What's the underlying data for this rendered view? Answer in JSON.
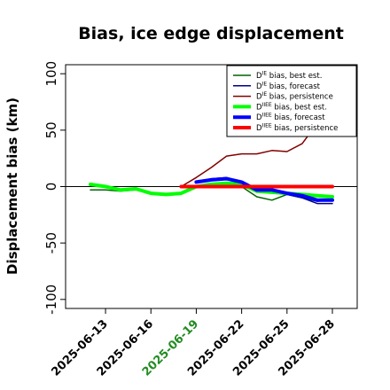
{
  "chart_data": {
    "type": "line",
    "title": "Bias, ice edge displacement",
    "ylabel": "Displacement bias (km)",
    "xlabel": "",
    "ylim": [
      -108,
      108
    ],
    "yticks": [
      -100,
      -50,
      0,
      50,
      100
    ],
    "xticks": [
      "2025-06-13",
      "2025-06-16",
      "2025-06-19",
      "2025-06-22",
      "2025-06-25",
      "2025-06-28"
    ],
    "highlight_tick": "2025-06-19",
    "highlight_color": "#228b22",
    "x": [
      "2025-06-12",
      "2025-06-13",
      "2025-06-14",
      "2025-06-15",
      "2025-06-16",
      "2025-06-17",
      "2025-06-18",
      "2025-06-19",
      "2025-06-20",
      "2025-06-21",
      "2025-06-22",
      "2025-06-23",
      "2025-06-24",
      "2025-06-25",
      "2025-06-26",
      "2025-06-27",
      "2025-06-28"
    ],
    "grid": false,
    "legend_position": "top-right",
    "series": [
      {
        "name": "D^IE bias, best est.",
        "color": "#006400",
        "width": 1.5,
        "values": [
          -3,
          -3,
          -4,
          -3,
          -6,
          -7,
          -6,
          1,
          -1,
          2,
          0,
          -9,
          -12,
          -7,
          -10,
          -13,
          -12
        ]
      },
      {
        "name": "D^IE bias, forecast",
        "color": "#00008b",
        "width": 1.5,
        "values": [
          null,
          null,
          null,
          null,
          null,
          null,
          null,
          4,
          7,
          8,
          4,
          -5,
          -4,
          -7,
          -10,
          -15,
          -15
        ]
      },
      {
        "name": "D^IE bias, persistence",
        "color": "#800000",
        "width": 1.5,
        "values": [
          null,
          null,
          null,
          null,
          null,
          null,
          0,
          8,
          17,
          27,
          29,
          29,
          32,
          31,
          38,
          56,
          60
        ]
      },
      {
        "name": "D^IIEE bias, best est.",
        "color": "#00ff00",
        "width": 4,
        "values": [
          2,
          0,
          -3,
          -2,
          -6,
          -7,
          -6,
          0,
          2,
          3,
          2,
          -4,
          -5,
          -6,
          -7,
          -8,
          -9
        ]
      },
      {
        "name": "D^IIEE bias, forecast",
        "color": "#0000ff",
        "width": 4,
        "values": [
          null,
          null,
          null,
          null,
          null,
          null,
          null,
          4,
          6,
          7,
          4,
          -3,
          -3,
          -6,
          -8,
          -12,
          -12
        ]
      },
      {
        "name": "D^IIEE bias, persistence",
        "color": "#ff0000",
        "width": 4,
        "values": [
          null,
          null,
          null,
          null,
          null,
          null,
          0,
          0,
          0,
          0,
          0,
          0,
          0,
          0,
          0,
          0,
          0
        ]
      }
    ]
  },
  "legend": [
    {
      "base": "D",
      "sup": "IE",
      "rest": " bias, best est."
    },
    {
      "base": "D",
      "sup": "IE",
      "rest": " bias, forecast"
    },
    {
      "base": "D",
      "sup": "IE",
      "rest": " bias, persistence"
    },
    {
      "base": "D",
      "sup": "IIEE",
      "rest": " bias, best est."
    },
    {
      "base": "D",
      "sup": "IIEE",
      "rest": " bias, forecast"
    },
    {
      "base": "D",
      "sup": "IIEE",
      "rest": " bias, persistence"
    }
  ]
}
